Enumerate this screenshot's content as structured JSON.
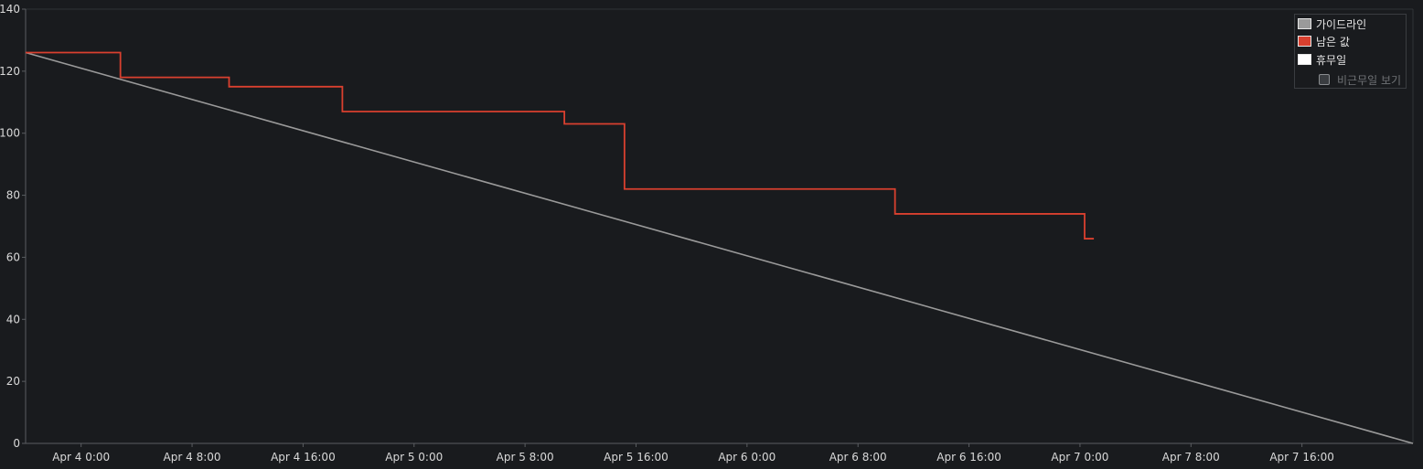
{
  "chart_data": {
    "type": "line",
    "title": "",
    "xlabel": "",
    "ylabel": "",
    "ylim": [
      0,
      140
    ],
    "yticks": [
      0,
      20,
      40,
      60,
      80,
      100,
      120,
      140
    ],
    "xlim": [
      "2024-04-03T20:00",
      "2024-04-08T00:00"
    ],
    "xticks": [
      {
        "t": "2024-04-04T00:00",
        "label": "Apr 4 0:00"
      },
      {
        "t": "2024-04-04T08:00",
        "label": "Apr 4 8:00"
      },
      {
        "t": "2024-04-04T16:00",
        "label": "Apr 4 16:00"
      },
      {
        "t": "2024-04-05T00:00",
        "label": "Apr 5 0:00"
      },
      {
        "t": "2024-04-05T08:00",
        "label": "Apr 5 8:00"
      },
      {
        "t": "2024-04-05T16:00",
        "label": "Apr 5 16:00"
      },
      {
        "t": "2024-04-06T00:00",
        "label": "Apr 6 0:00"
      },
      {
        "t": "2024-04-06T08:00",
        "label": "Apr 6 8:00"
      },
      {
        "t": "2024-04-06T16:00",
        "label": "Apr 6 16:00"
      },
      {
        "t": "2024-04-07T00:00",
        "label": "Apr 7 0:00"
      },
      {
        "t": "2024-04-07T08:00",
        "label": "Apr 7 8:00"
      },
      {
        "t": "2024-04-07T16:00",
        "label": "Apr 7 16:00"
      }
    ],
    "grid": false,
    "legend_position": "top-right",
    "series": [
      {
        "name": "가이드라인",
        "color": "#9a9a9a",
        "step": false,
        "points": [
          {
            "x": "2024-04-03T20:00",
            "y": 126
          },
          {
            "x": "2024-04-08T00:00",
            "y": 0
          }
        ]
      },
      {
        "name": "남은 값",
        "color": "#d9402f",
        "step": true,
        "points": [
          {
            "x": "2024-04-03T20:00",
            "y": 126
          },
          {
            "x": "2024-04-04T02:50",
            "y": 118
          },
          {
            "x": "2024-04-04T10:40",
            "y": 115
          },
          {
            "x": "2024-04-04T18:50",
            "y": 107
          },
          {
            "x": "2024-04-05T10:50",
            "y": 103
          },
          {
            "x": "2024-04-05T15:10",
            "y": 82
          },
          {
            "x": "2024-04-06T10:40",
            "y": 74
          },
          {
            "x": "2024-04-07T00:20",
            "y": 66
          },
          {
            "x": "2024-04-07T01:00",
            "y": 66
          }
        ]
      }
    ],
    "legend": [
      {
        "label": "가이드라인",
        "color": "#9a9a9a"
      },
      {
        "label": "남은 값",
        "color": "#d9402f"
      },
      {
        "label": "휴무일",
        "color": "#ffffff"
      }
    ],
    "toggle_label": "비근무일 보기",
    "toggle_checked": false
  }
}
